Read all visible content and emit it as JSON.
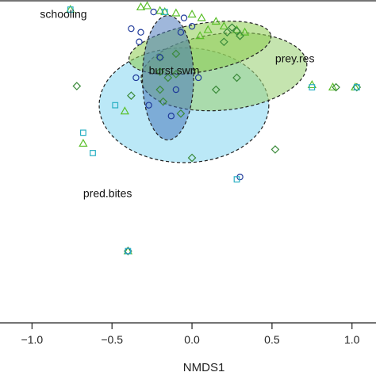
{
  "chart_data": {
    "type": "scatter",
    "xlabel": "NMDS1",
    "ylabel": "",
    "xlim": [
      -1.2,
      1.15
    ],
    "ylim": [
      -1.5,
      1.2
    ],
    "x_ticks": [
      -1.0,
      -0.5,
      0.0,
      0.5,
      1.0
    ],
    "x_tick_labels": [
      "−1.0",
      "−0.5",
      "0.0",
      "0.5",
      "1.0"
    ],
    "grid": false,
    "ellipses": [
      {
        "label": "pred.bites",
        "fill": "#8ed8f2",
        "opacity": 0.6,
        "cx": -0.05,
        "cy": 0.32,
        "rx": 0.53,
        "ry": 0.48,
        "angle": 0
      },
      {
        "label": "prey.res",
        "fill": "#9fd27a",
        "opacity": 0.6,
        "cx": 0.2,
        "cy": 0.6,
        "rx": 0.52,
        "ry": 0.32,
        "angle": -6
      },
      {
        "label": "schooling",
        "fill": "#8ccc4e",
        "opacity": 0.55,
        "cx": 0.05,
        "cy": 0.8,
        "rx": 0.45,
        "ry": 0.2,
        "angle": -10
      },
      {
        "label": "burst.swm",
        "fill": "#3f6fb8",
        "opacity": 0.5,
        "cx": -0.15,
        "cy": 0.55,
        "rx": 0.16,
        "ry": 0.52,
        "angle": 0
      }
    ],
    "factor_labels": [
      {
        "text": "schooling",
        "x": -0.95,
        "y": 1.05
      },
      {
        "text": "prey.res",
        "x": 0.52,
        "y": 0.68
      },
      {
        "text": "burst.swm",
        "x": -0.27,
        "y": 0.58
      },
      {
        "text": "pred.bites",
        "x": -0.68,
        "y": -0.45
      }
    ],
    "series": [
      {
        "marker": "triangle",
        "color": "#5bbf2a",
        "points": [
          [
            -0.76,
            1.12
          ],
          [
            -0.32,
            1.14
          ],
          [
            -0.28,
            1.15
          ],
          [
            -0.2,
            1.11
          ],
          [
            -0.17,
            1.1
          ],
          [
            -0.1,
            1.09
          ],
          [
            0.0,
            1.08
          ],
          [
            0.06,
            1.05
          ],
          [
            0.15,
            1.02
          ],
          [
            0.2,
            0.98
          ],
          [
            0.28,
            0.95
          ],
          [
            0.33,
            0.93
          ],
          [
            0.75,
            0.49
          ],
          [
            0.88,
            0.47
          ],
          [
            1.02,
            0.47
          ],
          [
            -0.42,
            0.27
          ],
          [
            -0.68,
            0.0
          ],
          [
            -0.4,
            -0.9
          ],
          [
            0.05,
            0.9
          ],
          [
            0.1,
            0.95
          ]
        ]
      },
      {
        "marker": "diamond",
        "color": "#3a8a3a",
        "points": [
          [
            -0.72,
            0.48
          ],
          [
            -0.2,
            0.72
          ],
          [
            0.25,
            0.97
          ],
          [
            0.3,
            0.9
          ],
          [
            0.28,
            0.94
          ],
          [
            0.22,
            0.93
          ],
          [
            -0.2,
            0.6
          ],
          [
            -0.2,
            0.45
          ],
          [
            -0.07,
            0.25
          ],
          [
            -0.15,
            0.55
          ],
          [
            -0.38,
            0.4
          ],
          [
            -0.1,
            0.75
          ],
          [
            0.28,
            0.55
          ],
          [
            0.15,
            0.45
          ],
          [
            -0.1,
            0.58
          ],
          [
            0.52,
            -0.05
          ],
          [
            0.0,
            -0.12
          ],
          [
            0.9,
            0.47
          ],
          [
            1.03,
            0.47
          ],
          [
            -0.4,
            -0.9
          ],
          [
            -0.18,
            0.35
          ],
          [
            0.2,
            0.85
          ]
        ]
      },
      {
        "marker": "circle",
        "color": "#1f3a9a",
        "points": [
          [
            -0.24,
            1.1
          ],
          [
            -0.05,
            1.05
          ],
          [
            0.0,
            0.98
          ],
          [
            -0.38,
            0.96
          ],
          [
            -0.32,
            0.93
          ],
          [
            -0.07,
            0.93
          ],
          [
            -0.33,
            0.85
          ],
          [
            -0.2,
            0.72
          ],
          [
            -0.35,
            0.55
          ],
          [
            -0.1,
            0.45
          ],
          [
            -0.27,
            0.32
          ],
          [
            -0.13,
            0.23
          ],
          [
            0.3,
            -0.28
          ],
          [
            -0.4,
            -0.9
          ],
          [
            0.04,
            0.55
          ]
        ]
      },
      {
        "marker": "square",
        "color": "#2bb0c4",
        "points": [
          [
            -0.76,
            1.12
          ],
          [
            -0.17,
            1.1
          ],
          [
            -0.48,
            0.32
          ],
          [
            -0.68,
            0.09
          ],
          [
            -0.62,
            -0.08
          ],
          [
            0.75,
            0.47
          ],
          [
            0.28,
            -0.3
          ],
          [
            -0.4,
            -0.9
          ],
          [
            1.03,
            0.47
          ]
        ]
      }
    ]
  }
}
